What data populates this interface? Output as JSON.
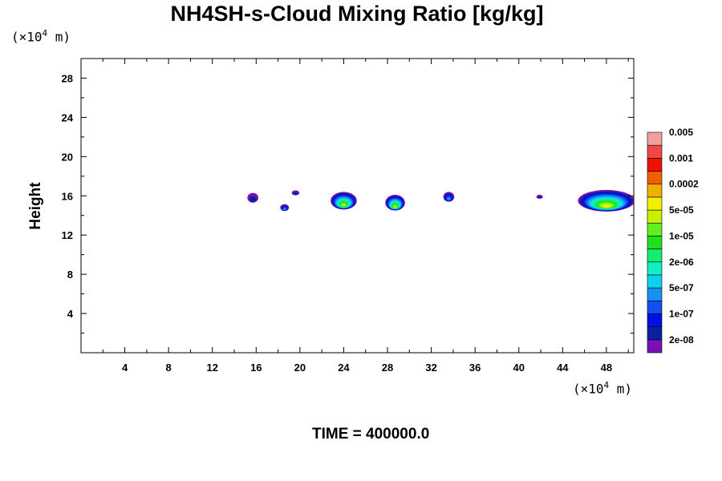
{
  "chart_data": {
    "type": "contour",
    "title": "NH4SH-s-Cloud Mixing Ratio [kg/kg]",
    "ylabel": "Height",
    "y_unit_prefix": "(×10",
    "x_unit_prefix": "(×10",
    "unit_exponent": "4",
    "unit_suffix": " m)",
    "footer": "TIME = 400000.0",
    "xlim": [
      0,
      50.5
    ],
    "ylim": [
      0,
      30
    ],
    "x_ticks": [
      4,
      8,
      12,
      16,
      20,
      24,
      28,
      32,
      36,
      40,
      44,
      48
    ],
    "x_tick_labels": [
      "4",
      "8",
      "12",
      "16",
      "20",
      "24",
      "28",
      "32",
      "36",
      "40",
      "44",
      "48"
    ],
    "y_ticks": [
      4,
      8,
      12,
      16,
      20,
      24,
      28
    ],
    "y_tick_labels": [
      "4",
      "8",
      "12",
      "16",
      "20",
      "24",
      "28"
    ],
    "colorbar": {
      "colors": [
        "#7a10b8",
        "#0a20a0",
        "#0010e0",
        "#1050f0",
        "#1890f0",
        "#10d0f0",
        "#10f0c0",
        "#10f070",
        "#20e020",
        "#60f020",
        "#c8f000",
        "#f0f000",
        "#f0b000",
        "#f06000",
        "#f01000",
        "#f04848",
        "#f0a0a0"
      ],
      "labels": [
        "2e-08",
        "1e-07",
        "5e-07",
        "2e-06",
        "1e-05",
        "5e-05",
        "0.0002",
        "0.001",
        "0.005"
      ]
    },
    "cloud_cells": [
      {
        "x_center": 15.7,
        "y_center": 15.8,
        "x_halfwidth": 0.5,
        "y_halfwidth": 0.5,
        "peak_level": 1
      },
      {
        "x_center": 18.6,
        "y_center": 14.8,
        "x_halfwidth": 0.4,
        "y_halfwidth": 0.35,
        "peak_level": 4
      },
      {
        "x_center": 19.6,
        "y_center": 16.3,
        "x_halfwidth": 0.35,
        "y_halfwidth": 0.25,
        "peak_level": 1
      },
      {
        "x_center": 24.0,
        "y_center": 15.5,
        "x_halfwidth": 1.2,
        "y_halfwidth": 0.9,
        "peak_level": 10
      },
      {
        "x_center": 28.7,
        "y_center": 15.3,
        "x_halfwidth": 0.9,
        "y_halfwidth": 0.8,
        "peak_level": 10
      },
      {
        "x_center": 33.6,
        "y_center": 15.9,
        "x_halfwidth": 0.5,
        "y_halfwidth": 0.5,
        "peak_level": 4
      },
      {
        "x_center": 41.9,
        "y_center": 15.9,
        "x_halfwidth": 0.3,
        "y_halfwidth": 0.2,
        "peak_level": 1
      },
      {
        "x_center": 48.0,
        "y_center": 15.5,
        "x_halfwidth": 2.6,
        "y_halfwidth": 1.1,
        "peak_level": 11
      }
    ]
  }
}
